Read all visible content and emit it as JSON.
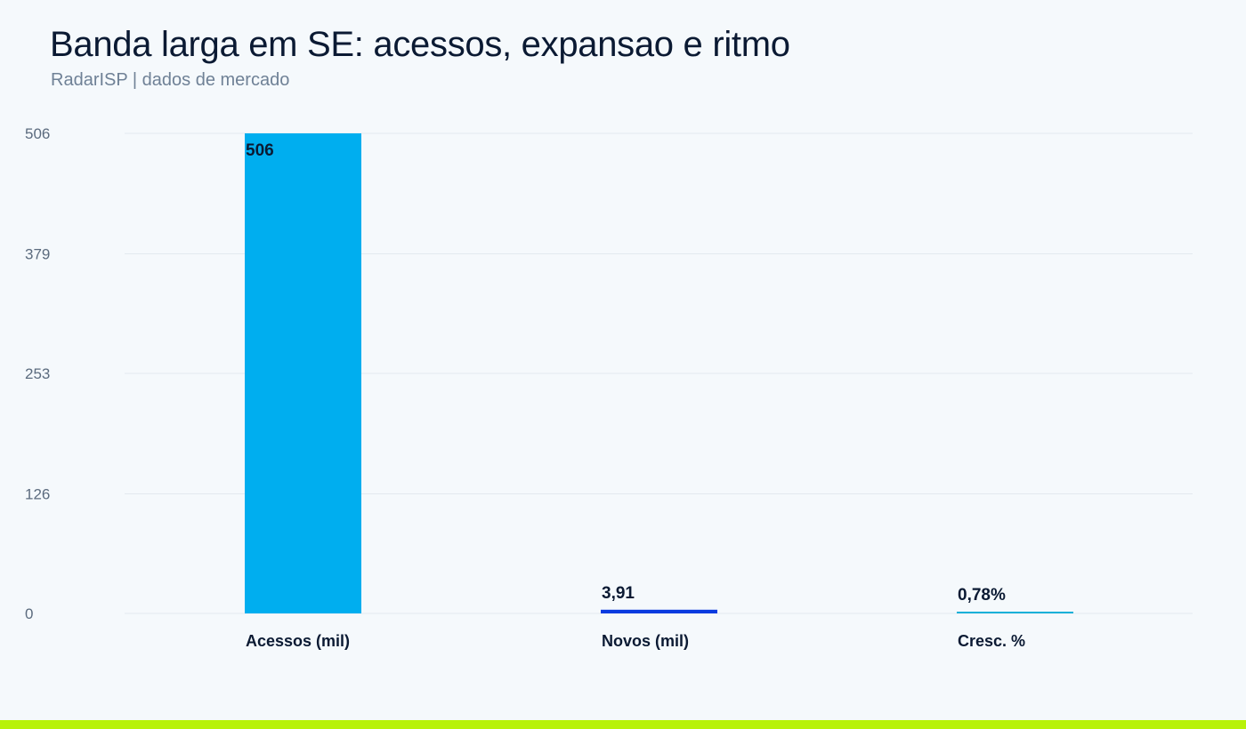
{
  "header": {
    "title": "Banda larga em SE: acessos, expansao e ritmo",
    "subtitle": "RadarISP | dados de mercado"
  },
  "colors": {
    "background": "#f5f9fc",
    "gridline": "#e3e9ef",
    "tick_label": "#5b6b7e",
    "category_label": "#0b1a33",
    "value_label": "#0b1a33",
    "accent_bar": "#b8f20a"
  },
  "chart_data": {
    "type": "bar",
    "title": "Banda larga em SE: acessos, expansao e ritmo",
    "subtitle": "RadarISP | dados de mercado",
    "categories": [
      "Acessos (mil)",
      "Novos (mil)",
      "Cresc. %"
    ],
    "values": [
      506,
      3.91,
      0.78
    ],
    "value_labels": [
      "506",
      "3,91",
      "0,78%"
    ],
    "colors": [
      "#00aeef",
      "#0a3be0",
      "#12b0d8"
    ],
    "ylim": [
      0,
      506
    ],
    "yticks": [
      0,
      126,
      253,
      379,
      506
    ],
    "xlabel": "",
    "ylabel": "",
    "grid": true,
    "legend": "none"
  }
}
